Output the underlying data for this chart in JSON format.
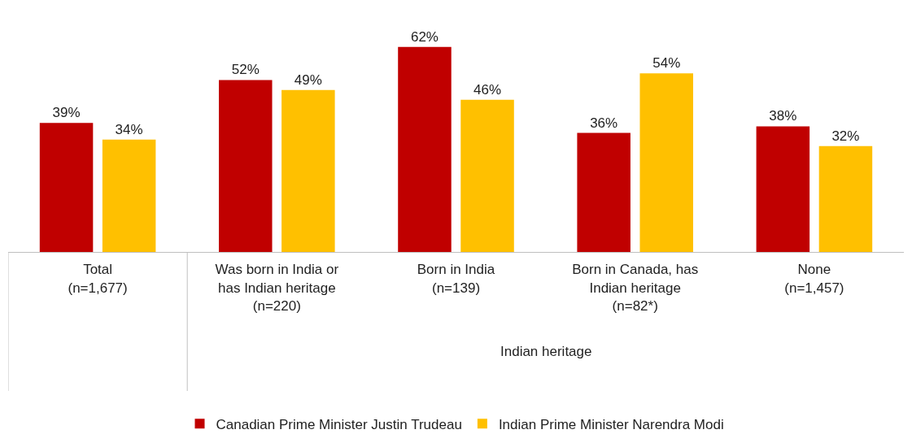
{
  "chart_data": {
    "type": "bar",
    "categories": [
      "Total\n(n=1,677)",
      "Was born in India or\nhas Indian heritage\n(n=220)",
      "Born in India\n(n=139)",
      "Born in Canada, has\nIndian heritage\n(n=82*)",
      "None\n(n=1,457)"
    ],
    "series": [
      {
        "name": "Canadian Prime Minister Justin Trudeau",
        "color": "#c00000",
        "values": [
          39,
          52,
          62,
          36,
          38
        ],
        "value_labels": [
          "39%",
          "52%",
          "62%",
          "36%",
          "38%"
        ]
      },
      {
        "name": "Indian Prime Minister Narendra Modi",
        "color": "#ffc000",
        "values": [
          34,
          49,
          46,
          54,
          32
        ],
        "value_labels": [
          "34%",
          "49%",
          "46%",
          "54%",
          "32%"
        ]
      }
    ],
    "tick_labels": "x",
    "legend": "bottom",
    "annotations": [
      "Indian heritage"
    ]
  }
}
